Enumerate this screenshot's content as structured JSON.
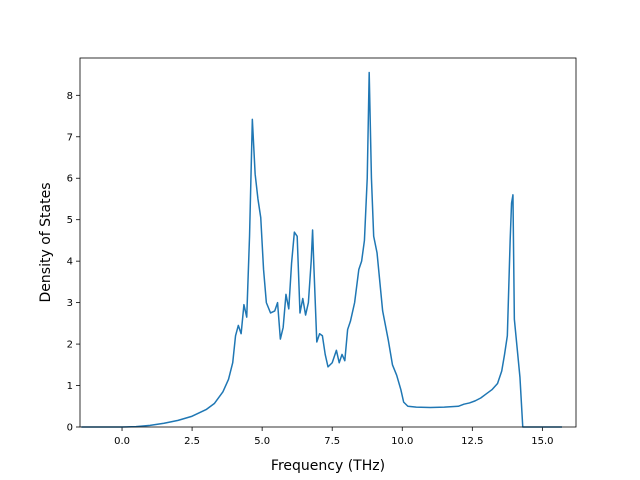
{
  "chart_data": {
    "type": "line",
    "xlabel": "Frequency (THz)",
    "ylabel": "Density of States",
    "xlim": [
      -1.5,
      16.2
    ],
    "ylim": [
      0,
      8.9
    ],
    "x_ticks": [
      0.0,
      2.5,
      5.0,
      7.5,
      10.0,
      12.5,
      15.0
    ],
    "x_tick_labels": [
      "0.0",
      "2.5",
      "5.0",
      "7.5",
      "10.0",
      "12.5",
      "15.0"
    ],
    "y_ticks": [
      0,
      1,
      2,
      3,
      4,
      5,
      6,
      7,
      8
    ],
    "y_tick_labels": [
      "0",
      "1",
      "2",
      "3",
      "4",
      "5",
      "6",
      "7",
      "8"
    ],
    "grid": false,
    "series": [
      {
        "color": "#1f77b4",
        "x": [
          -1.45,
          -0.5,
          0.0,
          0.5,
          1.0,
          1.5,
          2.0,
          2.5,
          3.0,
          3.3,
          3.6,
          3.8,
          3.95,
          4.05,
          4.15,
          4.25,
          4.35,
          4.45,
          4.55,
          4.65,
          4.75,
          4.85,
          4.95,
          5.05,
          5.15,
          5.3,
          5.45,
          5.55,
          5.65,
          5.75,
          5.85,
          5.95,
          6.05,
          6.15,
          6.25,
          6.35,
          6.45,
          6.55,
          6.65,
          6.75,
          6.8,
          6.85,
          6.95,
          7.05,
          7.15,
          7.25,
          7.35,
          7.5,
          7.65,
          7.75,
          7.85,
          7.95,
          8.05,
          8.15,
          8.3,
          8.45,
          8.55,
          8.65,
          8.75,
          8.82,
          8.9,
          8.98,
          9.1,
          9.3,
          9.5,
          9.65,
          9.8,
          9.95,
          10.05,
          10.2,
          10.5,
          11.0,
          11.5,
          12.0,
          12.2,
          12.4,
          12.6,
          12.8,
          13.0,
          13.2,
          13.4,
          13.55,
          13.65,
          13.75,
          13.85,
          13.9,
          13.95,
          14.0,
          14.1,
          14.2,
          14.3,
          14.5,
          15.0,
          15.7
        ],
        "values": [
          0.0,
          0.0,
          0.0,
          0.01,
          0.04,
          0.09,
          0.16,
          0.26,
          0.42,
          0.57,
          0.85,
          1.15,
          1.55,
          2.2,
          2.45,
          2.25,
          2.95,
          2.65,
          4.6,
          7.42,
          6.1,
          5.5,
          5.05,
          3.8,
          3.0,
          2.75,
          2.8,
          3.0,
          2.12,
          2.4,
          3.2,
          2.85,
          3.95,
          4.7,
          4.6,
          2.75,
          3.1,
          2.7,
          3.0,
          4.0,
          4.75,
          3.8,
          2.05,
          2.25,
          2.2,
          1.75,
          1.45,
          1.55,
          1.85,
          1.55,
          1.75,
          1.6,
          2.35,
          2.55,
          3.0,
          3.8,
          4.0,
          4.5,
          6.0,
          8.55,
          6.0,
          4.6,
          4.2,
          2.8,
          2.1,
          1.5,
          1.25,
          0.9,
          0.6,
          0.5,
          0.48,
          0.47,
          0.48,
          0.5,
          0.55,
          0.58,
          0.63,
          0.7,
          0.8,
          0.9,
          1.05,
          1.35,
          1.75,
          2.2,
          4.5,
          5.4,
          5.6,
          2.6,
          1.9,
          1.2,
          0.0,
          0.0,
          0.0,
          0.0
        ]
      }
    ]
  }
}
